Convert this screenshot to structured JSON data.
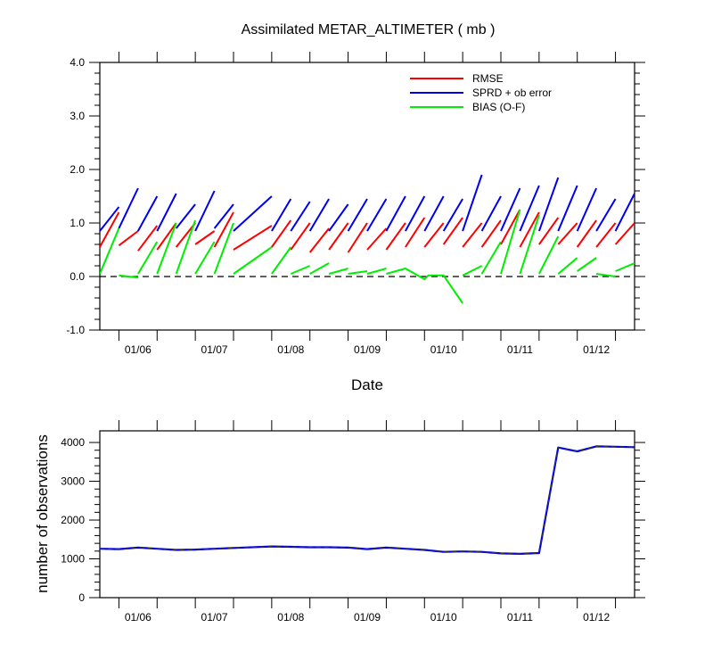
{
  "chart_data": [
    {
      "type": "line",
      "title": "Assimilated METAR_ALTIMETER ( mb )",
      "xlabel": "Date",
      "ylabel": "",
      "ylim": [
        -1.0,
        4.0
      ],
      "yticks": [
        "-1.0",
        "0.0",
        "1.0",
        "2.0",
        "3.0",
        "4.0"
      ],
      "x_range": [
        0,
        28
      ],
      "x_ticks": [
        {
          "x": 2,
          "label": "01/06"
        },
        {
          "x": 6,
          "label": "01/07"
        },
        {
          "x": 10,
          "label": "01/08"
        },
        {
          "x": 14,
          "label": "01/09"
        },
        {
          "x": 18,
          "label": "01/10"
        },
        {
          "x": 22,
          "label": "01/11"
        },
        {
          "x": 26,
          "label": "01/12"
        }
      ],
      "legend_position": "top-right",
      "reference_line": {
        "y": 0,
        "style": "dashed"
      },
      "series": [
        {
          "name": "RMSE",
          "color": "#ff0000",
          "segments": [
            [
              [
                0,
                0.55
              ],
              [
                1,
                1.2
              ]
            ],
            [
              [
                1,
                0.58
              ],
              [
                2,
                0.85
              ]
            ],
            [
              [
                2,
                0.48
              ],
              [
                3,
                0.95
              ]
            ],
            [
              [
                3,
                0.5
              ],
              [
                4,
                1.0
              ]
            ],
            [
              [
                4,
                0.55
              ],
              [
                5,
                1.0
              ]
            ],
            [
              [
                5,
                0.6
              ],
              [
                6,
                0.85
              ]
            ],
            [
              [
                6,
                0.55
              ],
              [
                7,
                1.2
              ]
            ],
            [
              [
                7,
                0.5
              ],
              [
                9,
                0.95
              ]
            ],
            [
              [
                9,
                0.55
              ],
              [
                10,
                1.05
              ]
            ],
            [
              [
                10,
                0.5
              ],
              [
                11,
                1.0
              ]
            ],
            [
              [
                11,
                0.45
              ],
              [
                12,
                0.9
              ]
            ],
            [
              [
                12,
                0.5
              ],
              [
                13,
                1.0
              ]
            ],
            [
              [
                13,
                0.45
              ],
              [
                14,
                1.0
              ]
            ],
            [
              [
                14,
                0.5
              ],
              [
                15,
                0.9
              ]
            ],
            [
              [
                15,
                0.5
              ],
              [
                16,
                1.0
              ]
            ],
            [
              [
                16,
                0.55
              ],
              [
                17,
                1.1
              ]
            ],
            [
              [
                17,
                0.55
              ],
              [
                18,
                1.0
              ]
            ],
            [
              [
                18,
                0.6
              ],
              [
                19,
                1.1
              ]
            ],
            [
              [
                19,
                0.55
              ],
              [
                20,
                1.0
              ]
            ],
            [
              [
                20,
                0.55
              ],
              [
                21,
                1.05
              ]
            ],
            [
              [
                21,
                0.6
              ],
              [
                22,
                1.25
              ]
            ],
            [
              [
                22,
                0.55
              ],
              [
                23,
                1.2
              ]
            ],
            [
              [
                23,
                0.6
              ],
              [
                24,
                1.1
              ]
            ],
            [
              [
                24,
                0.6
              ],
              [
                25,
                1.0
              ]
            ],
            [
              [
                25,
                0.55
              ],
              [
                26,
                1.05
              ]
            ],
            [
              [
                26,
                0.55
              ],
              [
                27,
                1.0
              ]
            ],
            [
              [
                27,
                0.6
              ],
              [
                28,
                1.0
              ]
            ]
          ]
        },
        {
          "name": "SPRD + ob error",
          "color": "#0000ee",
          "segments": [
            [
              [
                0,
                0.85
              ],
              [
                1,
                1.3
              ]
            ],
            [
              [
                1,
                0.9
              ],
              [
                2,
                1.65
              ]
            ],
            [
              [
                2,
                0.85
              ],
              [
                3,
                1.5
              ]
            ],
            [
              [
                3,
                0.85
              ],
              [
                4,
                1.55
              ]
            ],
            [
              [
                4,
                0.9
              ],
              [
                5,
                1.35
              ]
            ],
            [
              [
                5,
                0.85
              ],
              [
                6,
                1.6
              ]
            ],
            [
              [
                6,
                0.9
              ],
              [
                7,
                1.35
              ]
            ],
            [
              [
                7,
                0.85
              ],
              [
                9,
                1.5
              ]
            ],
            [
              [
                9,
                0.85
              ],
              [
                10,
                1.45
              ]
            ],
            [
              [
                10,
                0.85
              ],
              [
                11,
                1.4
              ]
            ],
            [
              [
                11,
                0.85
              ],
              [
                12,
                1.45
              ]
            ],
            [
              [
                12,
                0.85
              ],
              [
                13,
                1.35
              ]
            ],
            [
              [
                13,
                0.85
              ],
              [
                14,
                1.45
              ]
            ],
            [
              [
                14,
                0.85
              ],
              [
                15,
                1.45
              ]
            ],
            [
              [
                15,
                0.85
              ],
              [
                16,
                1.5
              ]
            ],
            [
              [
                16,
                0.85
              ],
              [
                17,
                1.5
              ]
            ],
            [
              [
                17,
                0.85
              ],
              [
                18,
                1.5
              ]
            ],
            [
              [
                18,
                0.85
              ],
              [
                19,
                1.45
              ]
            ],
            [
              [
                19,
                0.85
              ],
              [
                20,
                1.9
              ]
            ],
            [
              [
                20,
                0.85
              ],
              [
                21,
                1.5
              ]
            ],
            [
              [
                21,
                0.85
              ],
              [
                22,
                1.65
              ]
            ],
            [
              [
                22,
                0.85
              ],
              [
                23,
                1.7
              ]
            ],
            [
              [
                23,
                0.85
              ],
              [
                24,
                1.85
              ]
            ],
            [
              [
                24,
                0.85
              ],
              [
                25,
                1.7
              ]
            ],
            [
              [
                25,
                0.85
              ],
              [
                26,
                1.65
              ]
            ],
            [
              [
                26,
                0.85
              ],
              [
                27,
                1.45
              ]
            ],
            [
              [
                27,
                0.85
              ],
              [
                28,
                1.55
              ]
            ]
          ]
        },
        {
          "name": "BIAS (O-F)",
          "color": "#00ee00",
          "segments": [
            [
              [
                0,
                0.05
              ],
              [
                1,
                0.9
              ]
            ],
            [
              [
                1,
                0.02
              ],
              [
                2,
                -0.02
              ]
            ],
            [
              [
                2,
                0.05
              ],
              [
                3,
                0.65
              ]
            ],
            [
              [
                3,
                0.05
              ],
              [
                4,
                1.0
              ]
            ],
            [
              [
                4,
                0.05
              ],
              [
                5,
                1.05
              ]
            ],
            [
              [
                5,
                0.05
              ],
              [
                6,
                0.65
              ]
            ],
            [
              [
                6,
                0.05
              ],
              [
                7,
                1.0
              ]
            ],
            [
              [
                7,
                0.05
              ],
              [
                9,
                0.55
              ]
            ],
            [
              [
                9,
                0.05
              ],
              [
                10,
                0.55
              ]
            ],
            [
              [
                10,
                0.05
              ],
              [
                11,
                0.2
              ]
            ],
            [
              [
                11,
                0.05
              ],
              [
                12,
                0.25
              ]
            ],
            [
              [
                12,
                0.05
              ],
              [
                13,
                0.15
              ]
            ],
            [
              [
                13,
                0.05
              ],
              [
                14,
                0.1
              ]
            ],
            [
              [
                14,
                0.05
              ],
              [
                15,
                0.15
              ]
            ],
            [
              [
                15,
                0.05
              ],
              [
                16,
                0.15
              ],
              [
                17,
                -0.05
              ],
              [
                17.2,
                0.02
              ],
              [
                18,
                0.02
              ],
              [
                19,
                -0.5
              ]
            ],
            [
              [
                19,
                0.02
              ],
              [
                20,
                0.2
              ]
            ],
            [
              [
                20,
                0.05
              ],
              [
                21,
                0.65
              ]
            ],
            [
              [
                21,
                0.05
              ],
              [
                22,
                1.25
              ]
            ],
            [
              [
                22,
                0.05
              ],
              [
                23,
                1.15
              ]
            ],
            [
              [
                23,
                0.05
              ],
              [
                24,
                0.75
              ]
            ],
            [
              [
                24,
                0.05
              ],
              [
                25,
                0.35
              ]
            ],
            [
              [
                25,
                0.1
              ],
              [
                26,
                0.35
              ]
            ],
            [
              [
                26,
                0.05
              ],
              [
                27,
                0.0
              ]
            ],
            [
              [
                27,
                0.1
              ],
              [
                28,
                0.25
              ]
            ]
          ]
        }
      ]
    },
    {
      "type": "line",
      "title": "",
      "xlabel": "",
      "ylabel": "number of observations",
      "ylim": [
        0,
        4300
      ],
      "yticks": [
        "0",
        "1000",
        "2000",
        "3000",
        "4000"
      ],
      "x_range": [
        0,
        28
      ],
      "x_ticks": [
        {
          "x": 2,
          "label": "01/06"
        },
        {
          "x": 6,
          "label": "01/07"
        },
        {
          "x": 10,
          "label": "01/08"
        },
        {
          "x": 14,
          "label": "01/09"
        },
        {
          "x": 18,
          "label": "01/10"
        },
        {
          "x": 22,
          "label": "01/11"
        },
        {
          "x": 26,
          "label": "01/12"
        }
      ],
      "series": [
        {
          "color": "#0000ee",
          "dash_color": "#333333",
          "x": [
            0,
            1,
            2,
            3,
            4,
            5,
            6,
            7,
            9,
            10,
            11,
            12,
            13,
            14,
            15,
            16,
            17,
            18,
            19,
            20,
            21,
            22,
            23,
            24,
            25,
            26,
            27,
            28
          ],
          "values": [
            1260,
            1250,
            1290,
            1260,
            1230,
            1240,
            1260,
            1280,
            1320,
            1310,
            1300,
            1300,
            1290,
            1250,
            1290,
            1260,
            1230,
            1180,
            1190,
            1180,
            1140,
            1130,
            1150,
            3870,
            3770,
            3900,
            3890,
            3880
          ]
        }
      ]
    }
  ]
}
